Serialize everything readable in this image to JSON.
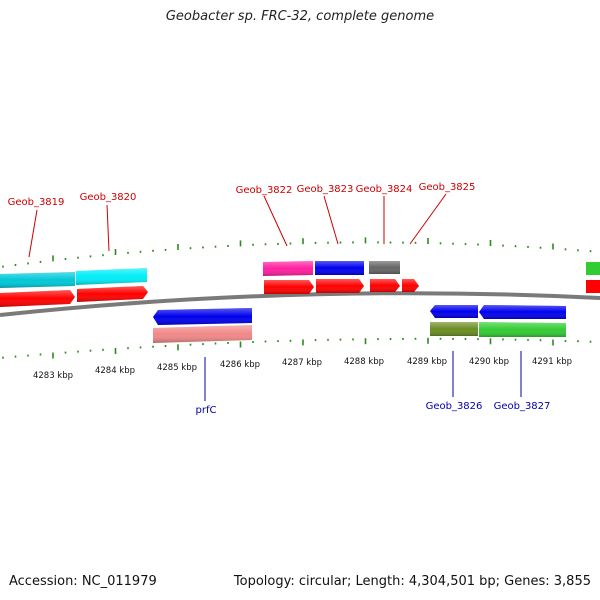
{
  "title": "Geobacter sp. FRC-32, complete genome",
  "accession": "Accession: NC_011979",
  "summary": "Topology: circular; Length: 4,304,501 bp; Genes: 3,855",
  "scale_labels": [
    "4283 kbp",
    "4284 kbp",
    "4285 kbp",
    "4286 kbp",
    "4287 kbp",
    "4288 kbp",
    "4289 kbp",
    "4290 kbp",
    "4291 kbp"
  ],
  "top_labels": [
    "Geob_3819",
    "Geob_3820",
    "Geob_3822",
    "Geob_3823",
    "Geob_3824",
    "Geob_3825"
  ],
  "bottom_labels": [
    "prfC",
    "Geob_3826",
    "Geob_3827"
  ],
  "colors": {
    "backbone": "#808080",
    "tick": "#2e8b20",
    "top_label": "#cc0000",
    "bottom_label": "#0000aa",
    "cds": "#ff0000",
    "cyan": "#00e6f0",
    "magenta": "#ff2aa0",
    "blue": "#0000ff",
    "gray": "#666666",
    "olive": "#6b8e23",
    "green": "#33cc33",
    "salmon": "#f08080"
  }
}
